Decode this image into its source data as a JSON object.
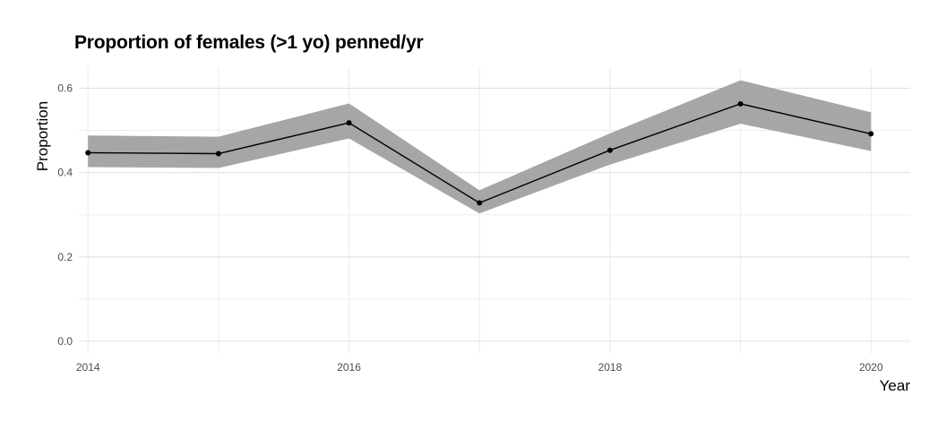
{
  "chart_data": {
    "type": "line",
    "title": "Proportion of females (>1 yo) penned/yr",
    "xlabel": "Year",
    "ylabel": "Proportion",
    "x": [
      2014,
      2015,
      2016,
      2017,
      2018,
      2019,
      2020
    ],
    "series": [
      {
        "values": [
          0.447,
          0.445,
          0.518,
          0.328,
          0.453,
          0.563,
          0.492
        ],
        "lower": [
          0.413,
          0.411,
          0.481,
          0.303,
          0.419,
          0.516,
          0.451
        ],
        "upper": [
          0.488,
          0.485,
          0.564,
          0.358,
          0.493,
          0.619,
          0.543
        ]
      }
    ],
    "x_ticks": [
      "2014",
      "2016",
      "2018",
      "2020"
    ],
    "x_tick_values": [
      2014,
      2016,
      2018,
      2020
    ],
    "y_ticks": [
      "0.0",
      "0.2",
      "0.4",
      "0.6"
    ],
    "y_tick_values": [
      0.0,
      0.2,
      0.4,
      0.6
    ],
    "xlim": [
      2013.93,
      2020.3
    ],
    "ylim": [
      -0.03,
      0.65
    ],
    "grid": true,
    "legend": "none",
    "colors": {
      "line": "#000000",
      "ribbon": "#a6a6a6",
      "grid": "#e5e5e5"
    }
  }
}
